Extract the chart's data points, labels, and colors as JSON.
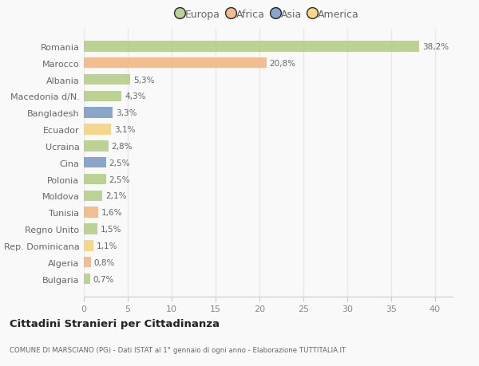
{
  "countries": [
    "Romania",
    "Marocco",
    "Albania",
    "Macedonia d/N.",
    "Bangladesh",
    "Ecuador",
    "Ucraina",
    "Cina",
    "Polonia",
    "Moldova",
    "Tunisia",
    "Regno Unito",
    "Rep. Dominicana",
    "Algeria",
    "Bulgaria"
  ],
  "values": [
    38.2,
    20.8,
    5.3,
    4.3,
    3.3,
    3.1,
    2.8,
    2.5,
    2.5,
    2.1,
    1.6,
    1.5,
    1.1,
    0.8,
    0.7
  ],
  "labels": [
    "38,2%",
    "20,8%",
    "5,3%",
    "4,3%",
    "3,3%",
    "3,1%",
    "2,8%",
    "2,5%",
    "2,5%",
    "2,1%",
    "1,6%",
    "1,5%",
    "1,1%",
    "0,8%",
    "0,7%"
  ],
  "colors": [
    "#afc97e",
    "#f0b27a",
    "#afc97e",
    "#afc97e",
    "#7093c0",
    "#f5d070",
    "#afc97e",
    "#7093c0",
    "#afc97e",
    "#afc97e",
    "#f0b27a",
    "#afc97e",
    "#f5d070",
    "#f0b27a",
    "#afc97e"
  ],
  "legend_labels": [
    "Europa",
    "Africa",
    "Asia",
    "America"
  ],
  "legend_colors": [
    "#afc97e",
    "#f0b27a",
    "#7093c0",
    "#f5d070"
  ],
  "xlim": [
    0,
    42
  ],
  "xticks": [
    0,
    5,
    10,
    15,
    20,
    25,
    30,
    35,
    40
  ],
  "title": "Cittadini Stranieri per Cittadinanza",
  "subtitle": "COMUNE DI MARSCIANO (PG) - Dati ISTAT al 1° gennaio di ogni anno - Elaborazione TUTTITALIA.IT",
  "background_color": "#f9f9f9",
  "grid_color": "#e8e8e8",
  "bar_alpha": 0.82,
  "label_color": "#666666",
  "tick_label_color": "#888888"
}
